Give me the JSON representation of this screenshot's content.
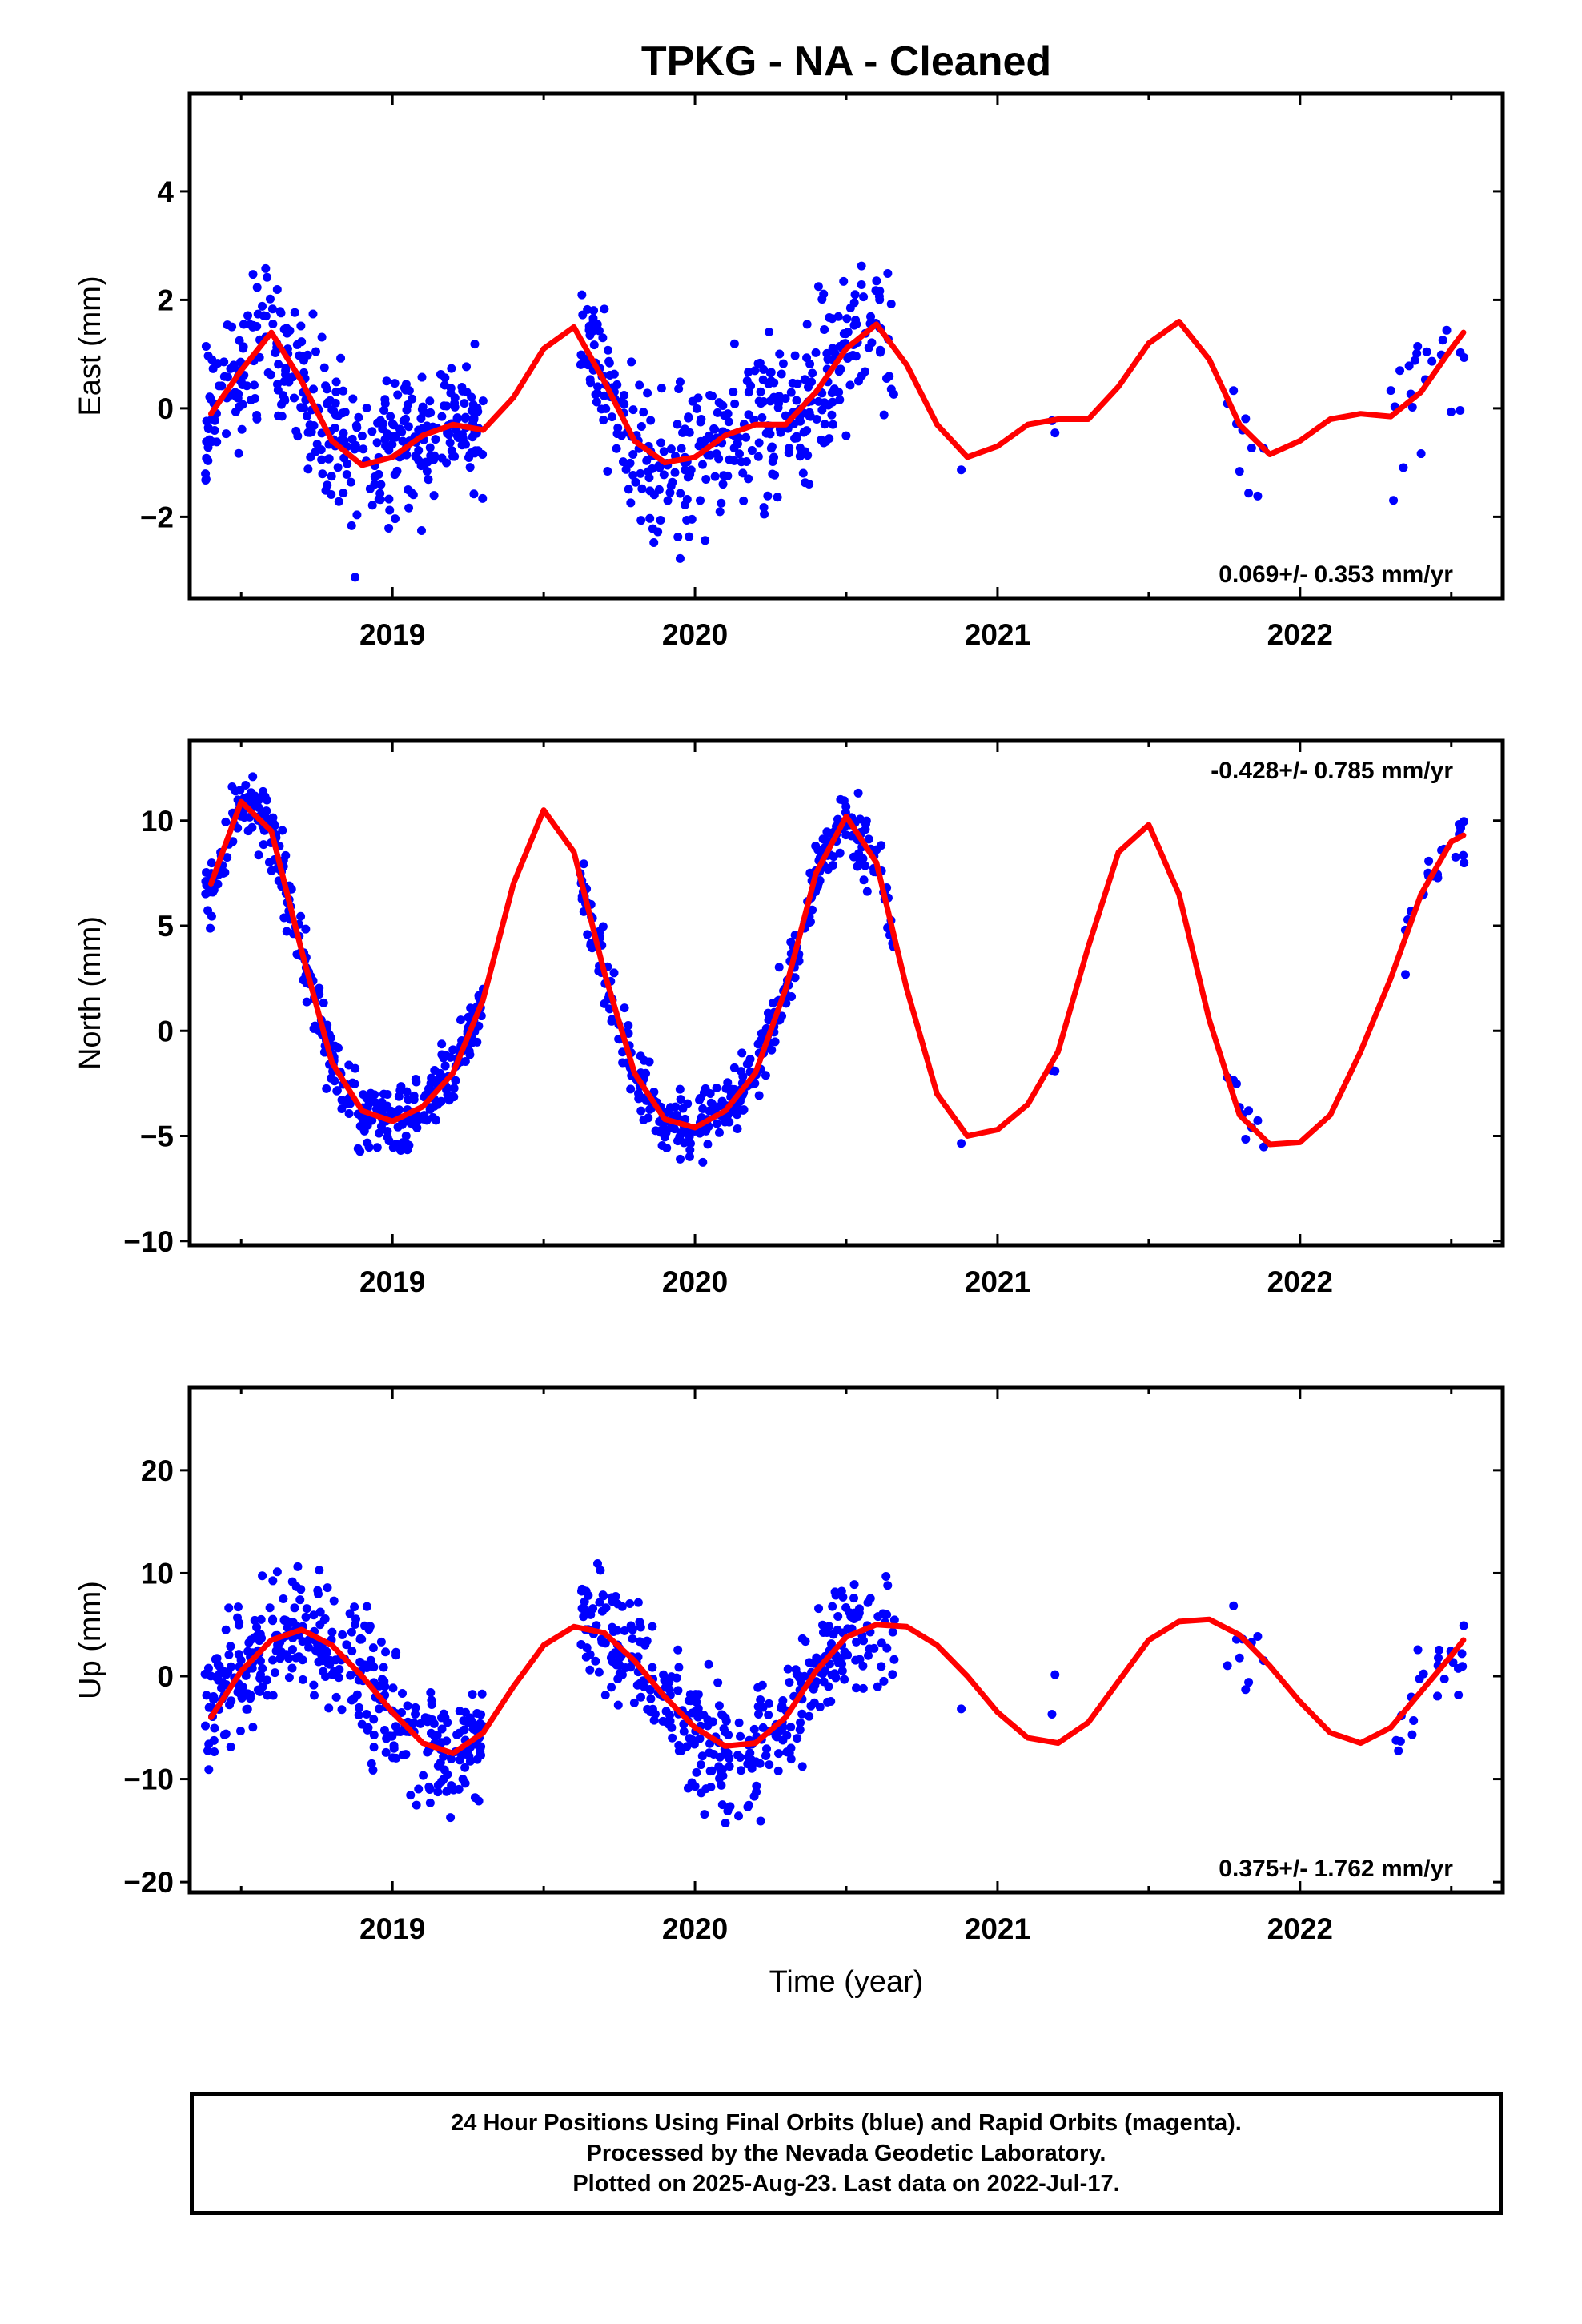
{
  "title": "TPKG  - NA - Cleaned",
  "xlabel": "Time (year)",
  "colors": {
    "data": "#0000ff",
    "fit": "#ff0000",
    "frame": "#000000"
  },
  "footer": {
    "line1": "24 Hour Positions Using Final Orbits (blue) and Rapid Orbits (magenta).",
    "line2": "Processed by the Nevada Geodetic Laboratory.",
    "line3": "Plotted on 2025-Aug-23. Last data on 2022-Jul-17."
  },
  "chart_data": [
    {
      "type": "scatter",
      "ylabel": "East (mm)",
      "rate": "0.069+/- 0.353 mm/yr",
      "rate_position": "bottom-right",
      "xlim": [
        2018.33,
        2022.67
      ],
      "ylim": [
        -3.5,
        5.8
      ],
      "xticks": [
        2019,
        2020,
        2021,
        2022
      ],
      "yticks": [
        -2,
        0,
        2,
        4
      ],
      "series": [
        {
          "kind": "points",
          "color": "#0000ff"
        },
        {
          "kind": "model",
          "color": "#ff0000",
          "x": [
            2018.4,
            2018.5,
            2018.6,
            2018.7,
            2018.8,
            2018.9,
            2019.0,
            2019.1,
            2019.2,
            2019.3,
            2019.4,
            2019.5,
            2019.6,
            2019.7,
            2019.8,
            2019.9,
            2020.0,
            2020.1,
            2020.2,
            2020.3,
            2020.4,
            2020.5,
            2020.6,
            2020.7,
            2020.8,
            2020.9,
            2021.0,
            2021.1,
            2021.2,
            2021.3,
            2021.4,
            2021.5,
            2021.6,
            2021.7,
            2021.8,
            2021.9,
            2022.0,
            2022.1,
            2022.2,
            2022.3,
            2022.4,
            2022.5,
            2022.54
          ],
          "y": [
            -0.1,
            0.7,
            1.4,
            0.5,
            -0.6,
            -1.05,
            -0.9,
            -0.5,
            -0.3,
            -0.4,
            0.2,
            1.1,
            1.5,
            0.5,
            -0.6,
            -1.0,
            -0.9,
            -0.5,
            -0.3,
            -0.3,
            0.3,
            1.1,
            1.55,
            0.8,
            -0.3,
            -0.9,
            -0.7,
            -0.3,
            -0.2,
            -0.2,
            0.4,
            1.2,
            1.6,
            0.9,
            -0.3,
            -0.85,
            -0.6,
            -0.2,
            -0.1,
            -0.15,
            0.3,
            1.1,
            1.4
          ]
        }
      ]
    },
    {
      "type": "scatter",
      "ylabel": "North (mm)",
      "rate": "-0.428+/- 0.785 mm/yr",
      "rate_position": "top-right",
      "xlim": [
        2018.33,
        2022.67
      ],
      "ylim": [
        -10.2,
        13.8
      ],
      "xticks": [
        2019,
        2020,
        2021,
        2022
      ],
      "yticks": [
        -10,
        -5,
        0,
        5,
        10
      ],
      "series": [
        {
          "kind": "points",
          "color": "#0000ff"
        },
        {
          "kind": "model",
          "color": "#ff0000",
          "x": [
            2018.4,
            2018.5,
            2018.6,
            2018.7,
            2018.8,
            2018.9,
            2019.0,
            2019.1,
            2019.2,
            2019.3,
            2019.4,
            2019.5,
            2019.6,
            2019.7,
            2019.8,
            2019.9,
            2020.0,
            2020.1,
            2020.2,
            2020.3,
            2020.4,
            2020.5,
            2020.6,
            2020.7,
            2020.8,
            2020.9,
            2021.0,
            2021.1,
            2021.2,
            2021.3,
            2021.4,
            2021.5,
            2021.6,
            2021.7,
            2021.8,
            2021.9,
            2022.0,
            2022.1,
            2022.2,
            2022.3,
            2022.4,
            2022.5,
            2022.54
          ],
          "y": [
            7.0,
            10.9,
            9.5,
            3.8,
            -1.5,
            -3.8,
            -4.3,
            -3.6,
            -2.0,
            1.5,
            7.0,
            10.5,
            8.5,
            2.8,
            -2.0,
            -4.2,
            -4.6,
            -3.8,
            -2.0,
            2.0,
            7.5,
            10.2,
            8.0,
            2.0,
            -3.0,
            -5.0,
            -4.7,
            -3.5,
            -1.0,
            4.0,
            8.5,
            9.8,
            6.5,
            0.5,
            -4.0,
            -5.4,
            -5.3,
            -4.0,
            -1.0,
            2.5,
            6.5,
            9.0,
            9.3
          ]
        }
      ]
    },
    {
      "type": "scatter",
      "ylabel": "Up (mm)",
      "rate": "0.375+/- 1.762 mm/yr",
      "rate_position": "bottom-right",
      "xlim": [
        2018.33,
        2022.67
      ],
      "ylim": [
        -21.0,
        28.0
      ],
      "xticks": [
        2019,
        2020,
        2021,
        2022
      ],
      "yticks": [
        -20,
        -10,
        0,
        10,
        20
      ],
      "series": [
        {
          "kind": "points",
          "color": "#0000ff"
        },
        {
          "kind": "model",
          "color": "#ff0000",
          "x": [
            2018.4,
            2018.5,
            2018.6,
            2018.7,
            2018.8,
            2018.9,
            2019.0,
            2019.1,
            2019.2,
            2019.3,
            2019.4,
            2019.5,
            2019.6,
            2019.7,
            2019.8,
            2019.9,
            2020.0,
            2020.1,
            2020.2,
            2020.3,
            2020.4,
            2020.5,
            2020.6,
            2020.7,
            2020.8,
            2020.9,
            2021.0,
            2021.1,
            2021.2,
            2021.3,
            2021.4,
            2021.5,
            2021.6,
            2021.7,
            2021.8,
            2021.9,
            2022.0,
            2022.1,
            2022.2,
            2022.3,
            2022.4,
            2022.5,
            2022.54
          ],
          "y": [
            -4.0,
            0.5,
            3.5,
            4.5,
            3.0,
            0.0,
            -3.5,
            -6.5,
            -7.5,
            -5.5,
            -1.0,
            3.0,
            4.8,
            4.2,
            1.5,
            -2.0,
            -5.0,
            -6.8,
            -6.5,
            -4.0,
            0.5,
            3.8,
            5.0,
            4.8,
            3.0,
            0.0,
            -3.5,
            -6.0,
            -6.5,
            -4.5,
            -0.5,
            3.5,
            5.3,
            5.5,
            4.0,
            1.0,
            -2.5,
            -5.5,
            -6.5,
            -5.0,
            -1.5,
            2.0,
            3.5
          ]
        }
      ]
    }
  ]
}
